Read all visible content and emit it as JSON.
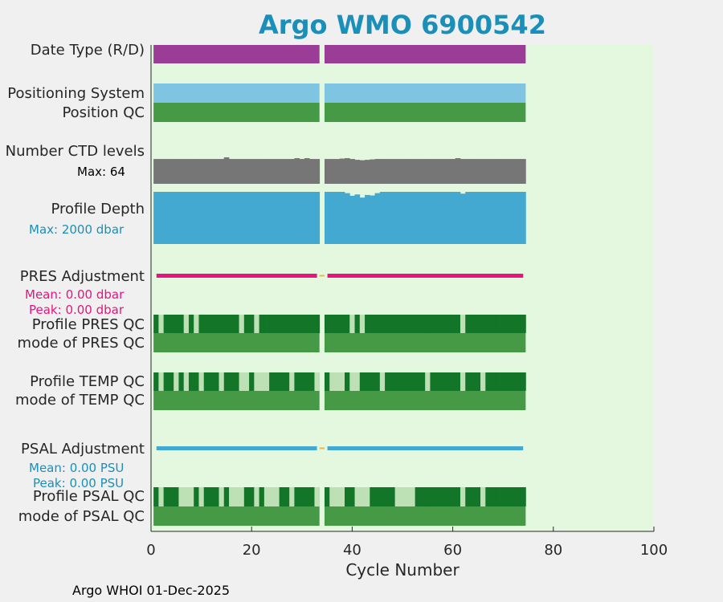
{
  "chart_data": {
    "type": "heatmap",
    "title": "Argo WMO 6900542",
    "xlabel": "Cycle Number",
    "xlim": [
      0,
      100
    ],
    "xticks": [
      0,
      20,
      40,
      60,
      80,
      100
    ],
    "gap_cycles": [
      34
    ],
    "rows": {
      "date_type": {
        "label": "Date Type (R/D)",
        "cycles": [
          1,
          74
        ],
        "color": "#9b3c96"
      },
      "positioning": {
        "label": "Positioning System",
        "cycles": [
          1,
          74
        ],
        "color": "#7fc4e0"
      },
      "position_qc": {
        "label": "Position QC",
        "cycles": [
          1,
          74
        ],
        "color": "#469a46"
      },
      "ctd_levels": {
        "label": "Number CTD levels",
        "max_label": "Max: 64",
        "max": 64,
        "default": 60,
        "exceptions": [
          [
            15,
            64
          ],
          [
            29,
            62
          ],
          [
            31,
            62
          ],
          [
            38,
            61
          ],
          [
            39,
            62
          ],
          [
            41,
            58
          ],
          [
            42,
            57
          ],
          [
            43,
            58
          ],
          [
            44,
            59
          ],
          [
            61,
            62
          ]
        ],
        "color": "#767676"
      },
      "profile_depth": {
        "label": "Profile Depth",
        "max_label": "Max: 2000 dbar",
        "max": 2000,
        "default": 2000,
        "exceptions": [
          [
            39,
            1950
          ],
          [
            40,
            1850
          ],
          [
            41,
            1900
          ],
          [
            42,
            1780
          ],
          [
            43,
            1880
          ],
          [
            44,
            1860
          ],
          [
            45,
            1950
          ],
          [
            62,
            1930
          ]
        ],
        "color": "#43a9d0"
      },
      "pres_adjustment": {
        "label": "PRES Adjustment",
        "mean_label": "Mean: 0.00 dbar",
        "peak_label": "Peak: 0.00 dbar",
        "color": "#e8137f",
        "gap_color": "#f2b342"
      },
      "profile_pres_qc": {
        "label": "Profile PRES QC",
        "flagged": [
          2,
          7,
          9,
          18,
          21,
          40,
          42,
          62
        ]
      },
      "mode_pres_qc": {
        "label": "mode of PRES QC"
      },
      "profile_temp_qc": {
        "label": "Profile TEMP QC",
        "flagged": [
          2,
          5,
          7,
          10,
          14,
          18,
          19,
          21,
          22,
          23,
          28,
          33,
          36,
          37,
          38,
          40,
          41,
          46,
          55,
          62,
          66
        ]
      },
      "mode_temp_qc": {
        "label": "mode of TEMP QC"
      },
      "psal_adjustment": {
        "label": "PSAL Adjustment",
        "mean_label": "Mean: 0.00 PSU",
        "peak_label": "Peak: 0.00 PSU",
        "color": "#43a9d0",
        "gap_color": "#f2b342"
      },
      "profile_psal_qc": {
        "label": "Profile PSAL QC",
        "flagged": [
          2,
          6,
          7,
          8,
          10,
          14,
          16,
          17,
          18,
          21,
          23,
          24,
          25,
          28,
          33,
          36,
          37,
          38,
          41,
          42,
          43,
          49,
          50,
          51,
          52,
          62,
          66
        ]
      },
      "mode_psal_qc": {
        "label": "mode of PSAL QC"
      }
    },
    "colors": {
      "background": "#e3f8df",
      "title": "#1a8fba",
      "good_dark": "#137528",
      "flag_light": "#bde0b5",
      "mode_good": "#469a46",
      "axis": "#262626"
    }
  },
  "footer": "Argo WHOI 01-Dec-2025"
}
